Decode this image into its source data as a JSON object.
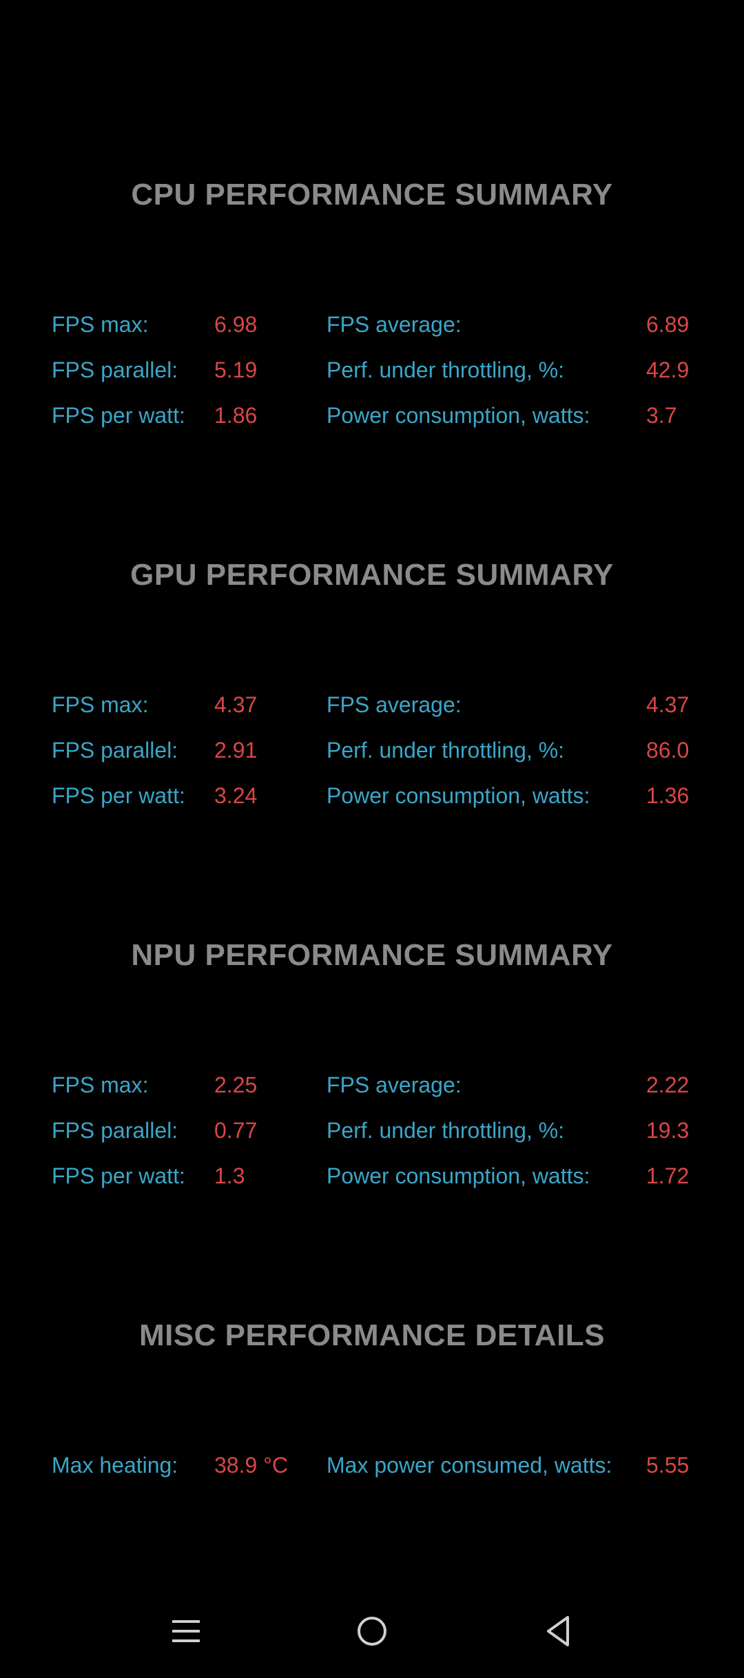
{
  "cpu": {
    "title": "CPU PERFORMANCE SUMMARY",
    "rows": [
      {
        "l1": "FPS max:",
        "v1": "6.98",
        "l2": "FPS average:",
        "v2": "6.89"
      },
      {
        "l1": "FPS parallel:",
        "v1": "5.19",
        "l2": "Perf. under throttling, %:",
        "v2": "42.9"
      },
      {
        "l1": "FPS per watt:",
        "v1": "1.86",
        "l2": "Power consumption, watts:",
        "v2": "3.7"
      }
    ]
  },
  "gpu": {
    "title": "GPU PERFORMANCE SUMMARY",
    "rows": [
      {
        "l1": "FPS max:",
        "v1": "4.37",
        "l2": "FPS average:",
        "v2": "4.37"
      },
      {
        "l1": "FPS parallel:",
        "v1": "2.91",
        "l2": "Perf. under throttling, %:",
        "v2": "86.0"
      },
      {
        "l1": "FPS per watt:",
        "v1": "3.24",
        "l2": "Power consumption, watts:",
        "v2": "1.36"
      }
    ]
  },
  "npu": {
    "title": "NPU PERFORMANCE SUMMARY",
    "rows": [
      {
        "l1": "FPS max:",
        "v1": "2.25",
        "l2": "FPS average:",
        "v2": "2.22"
      },
      {
        "l1": "FPS parallel:",
        "v1": "0.77",
        "l2": "Perf. under throttling, %:",
        "v2": "19.3"
      },
      {
        "l1": "FPS per watt:",
        "v1": "1.3",
        "l2": "Power consumption, watts:",
        "v2": "1.72"
      }
    ]
  },
  "misc": {
    "title": "MISC PERFORMANCE DETAILS",
    "rows": [
      {
        "l1": "Max heating:",
        "v1": "38.9 °C",
        "l2": "Max power consumed, watts:",
        "v2": "5.55"
      }
    ]
  },
  "navbar": {
    "icons": [
      "menu-icon",
      "home-icon",
      "back-icon"
    ]
  },
  "colors": {
    "background": "#000000",
    "title": "#8a8a8a",
    "label": "#3aa6c9",
    "value": "#d94646"
  }
}
